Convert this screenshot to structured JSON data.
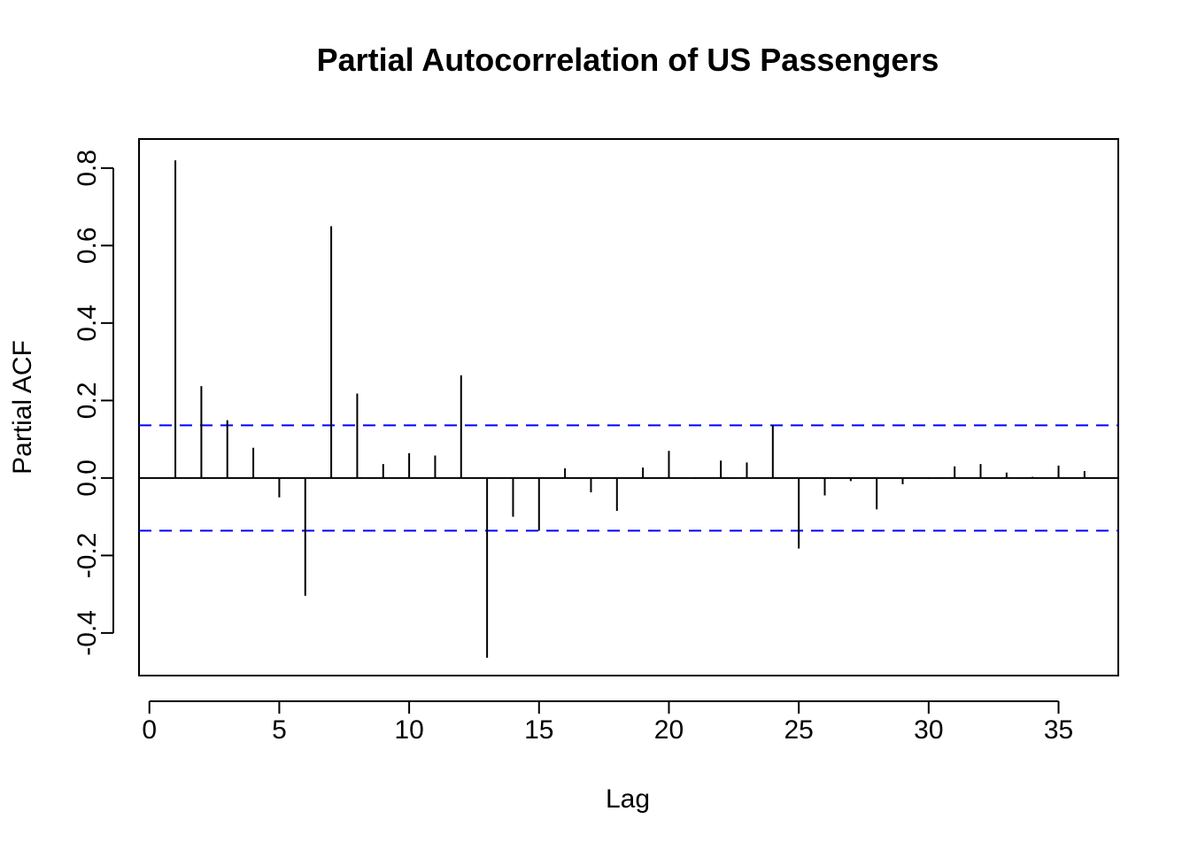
{
  "chart_data": {
    "type": "bar",
    "title": "Partial Autocorrelation of US Passengers",
    "xlabel": "Lag",
    "ylabel": "Partial ACF",
    "xlim": [
      -0.4,
      37.3
    ],
    "ylim": [
      -0.51,
      0.875
    ],
    "x_ticks": [
      0,
      5,
      10,
      15,
      20,
      25,
      30,
      35
    ],
    "x_tick_labels": [
      "0",
      "5",
      "10",
      "15",
      "20",
      "25",
      "30",
      "35"
    ],
    "y_ticks": [
      -0.4,
      -0.2,
      0.0,
      0.2,
      0.4,
      0.6,
      0.8
    ],
    "y_tick_labels": [
      "-0.4",
      "-0.2",
      "0.0",
      "0.2",
      "0.4",
      "0.6",
      "0.8"
    ],
    "confidence_bound": 0.136,
    "colors": {
      "bars": "#000000",
      "confidence": "#0000ff",
      "frame": "#000000"
    },
    "lags": [
      1,
      2,
      3,
      4,
      5,
      6,
      7,
      8,
      9,
      10,
      11,
      12,
      13,
      14,
      15,
      16,
      17,
      18,
      19,
      20,
      21,
      22,
      23,
      24,
      25,
      26,
      27,
      28,
      29,
      30,
      31,
      32,
      33,
      34,
      35,
      36
    ],
    "values": [
      0.82,
      0.237,
      0.149,
      0.078,
      -0.05,
      -0.304,
      0.65,
      0.218,
      0.036,
      0.064,
      0.058,
      0.265,
      -0.464,
      -0.1,
      -0.136,
      0.025,
      -0.037,
      -0.085,
      0.027,
      0.07,
      -0.002,
      0.045,
      0.04,
      0.136,
      -0.182,
      -0.045,
      -0.008,
      -0.081,
      -0.016,
      -0.002,
      0.03,
      0.036,
      0.014,
      0.003,
      0.032,
      0.018
    ]
  }
}
